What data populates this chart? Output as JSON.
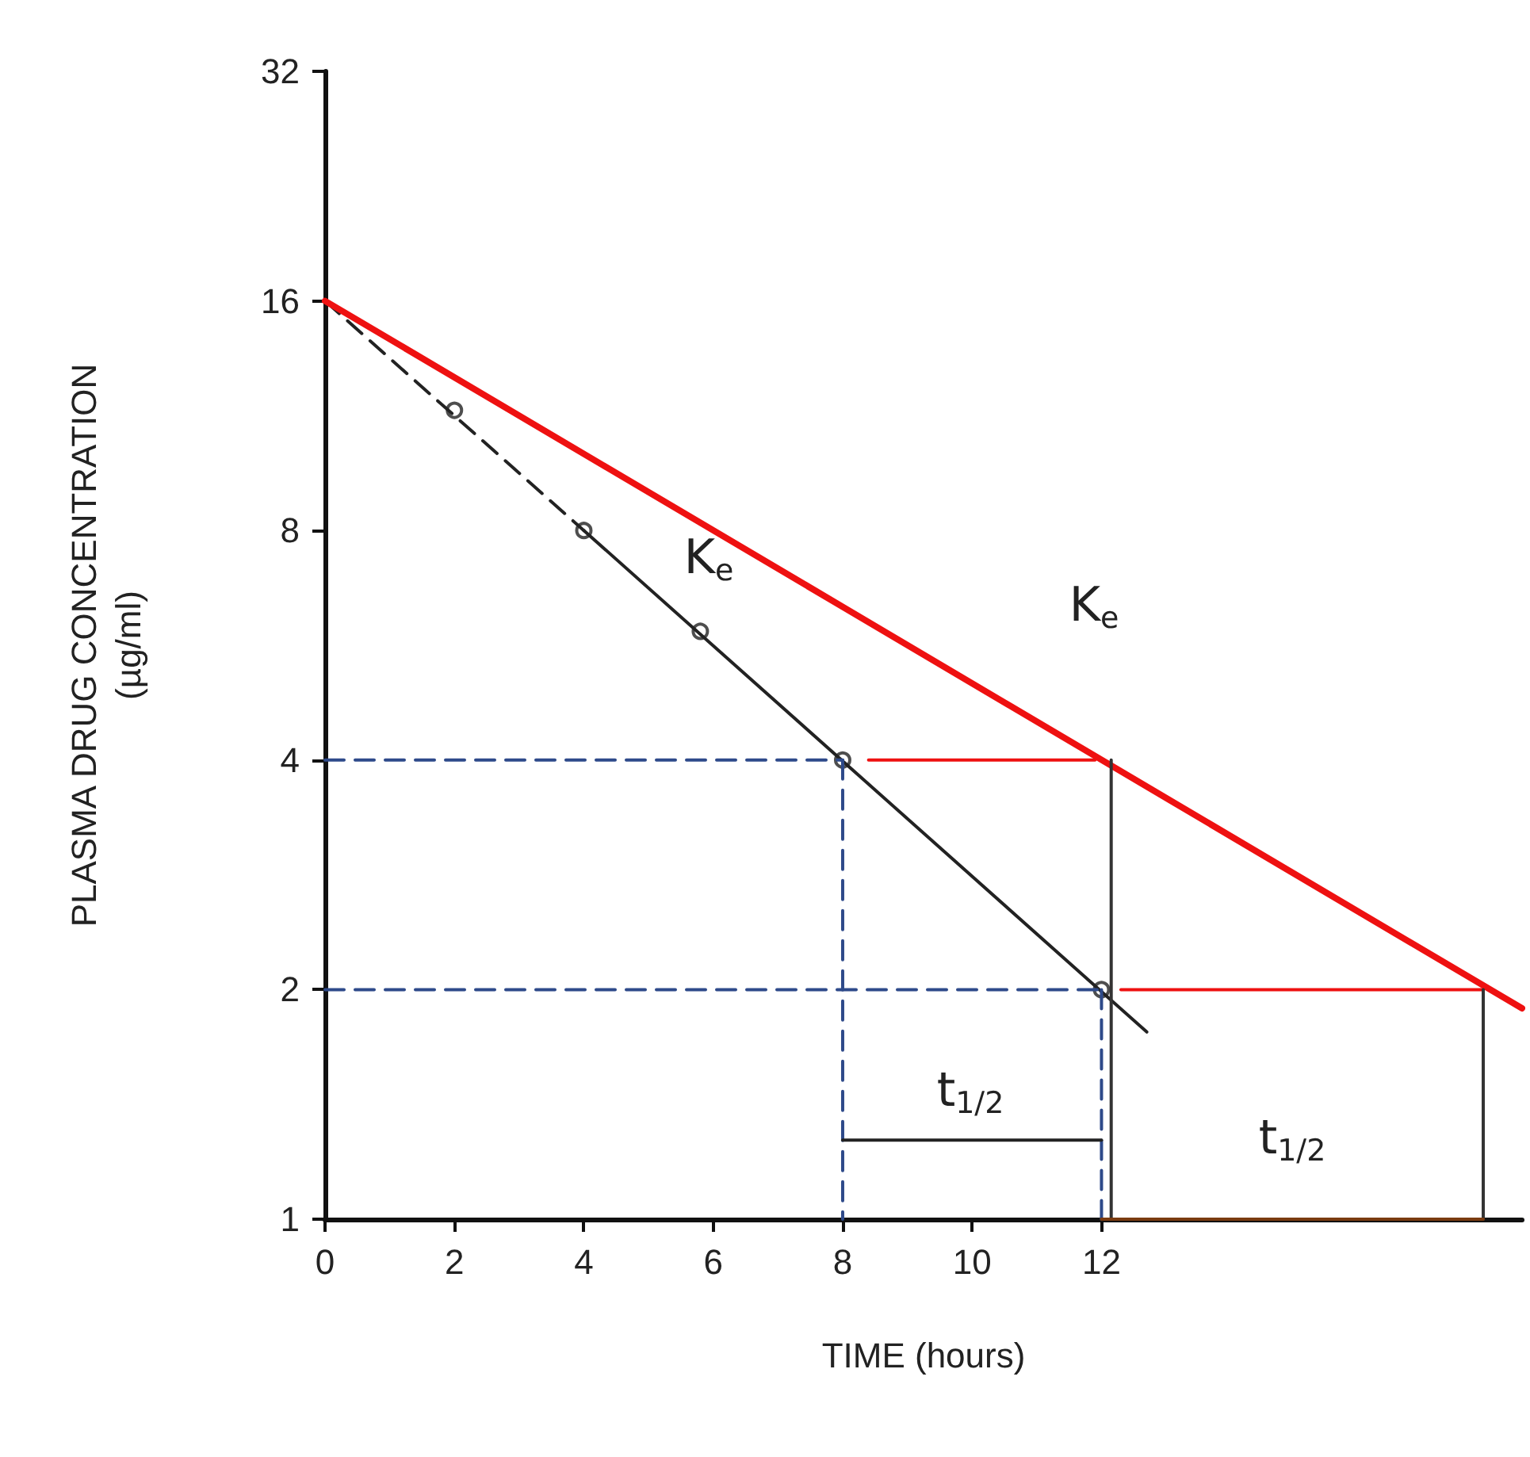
{
  "chart_data": {
    "type": "line",
    "xlabel": "TIME (hours)",
    "ylabel": "PLASMA DRUG CONCENTRATION\n(µg/ml)",
    "log": "y",
    "xlim": [
      0,
      18.5
    ],
    "xticks": [
      0,
      2,
      4,
      6,
      8,
      10,
      12
    ],
    "ylim": [
      1,
      32
    ],
    "yticks": [
      1,
      2,
      4,
      8,
      16,
      32
    ],
    "grid": false,
    "series": [
      {
        "type": "scatter",
        "color": "#222222",
        "marker": "circle",
        "x": [
          2,
          4,
          5.8,
          8,
          12
        ],
        "values": [
          11.5,
          8,
          5.9,
          4,
          2
        ]
      },
      {
        "color": "#222222",
        "line_style": "solid",
        "marker": "none",
        "x": [
          4,
          12.7
        ],
        "values": [
          8,
          1.76
        ]
      },
      {
        "color": "#222222",
        "line_style": "dashed",
        "marker": "none",
        "x": [
          0,
          4
        ],
        "values": [
          16,
          8
        ]
      },
      {
        "color": "#ee1111",
        "line_style": "solid",
        "marker": "none",
        "x": [
          0,
          18.5
        ],
        "values": [
          16,
          1.89
        ]
      },
      {
        "color": "#2e4a8a",
        "line_style": "dashed",
        "marker": "none",
        "x": [
          0,
          8
        ],
        "values": [
          4,
          4
        ]
      },
      {
        "color": "#2e4a8a",
        "line_style": "dashed",
        "marker": "none",
        "x": [
          0,
          12
        ],
        "values": [
          2,
          2
        ]
      },
      {
        "color": "#2e4a8a",
        "line_style": "dashed",
        "marker": "none",
        "x": [
          8,
          8
        ],
        "values": [
          4,
          1
        ]
      },
      {
        "color": "#2e4a8a",
        "line_style": "dashed",
        "marker": "none",
        "x": [
          12,
          12
        ],
        "values": [
          2,
          1
        ]
      },
      {
        "color": "#ee1111",
        "line_style": "solid",
        "marker": "none",
        "x": [
          8.4,
          11.9
        ],
        "values": [
          4,
          4
        ]
      },
      {
        "color": "#ee1111",
        "line_style": "solid",
        "marker": "none",
        "x": [
          12.3,
          17.9
        ],
        "values": [
          2,
          2
        ]
      },
      {
        "color": "#333333",
        "line_style": "solid",
        "marker": "none",
        "x": [
          12.15,
          12.15
        ],
        "values": [
          4,
          1
        ]
      },
      {
        "color": "#333333",
        "line_style": "solid",
        "marker": "none",
        "x": [
          17.9,
          17.9
        ],
        "values": [
          2,
          1
        ]
      },
      {
        "color": "#222222",
        "line_style": "solid",
        "marker": "none",
        "x": [
          8,
          12
        ],
        "values": [
          1.27,
          1.27
        ]
      },
      {
        "color": "#7a3b10",
        "line_style": "solid",
        "marker": "none",
        "x": [
          12,
          17.9
        ],
        "values": [
          1,
          1
        ]
      }
    ],
    "annotations": [
      "K$_{e}$",
      "K$_{e}$",
      "t$_{1/2}$",
      "t$_{1/2}$"
    ]
  }
}
